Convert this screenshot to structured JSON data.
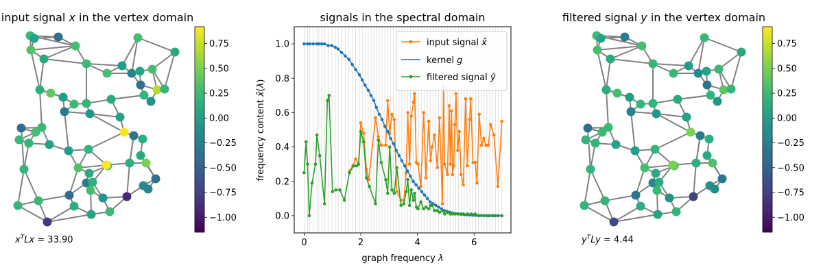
{
  "chart_data": [
    {
      "type": "scatter",
      "title": "input signal x in the vertex domain",
      "annotation": "x^T L x = 33.90",
      "colorbar": {
        "colormap": "viridis",
        "range": [
          -1.15,
          0.92
        ],
        "ticks": [
          0.75,
          0.5,
          0.25,
          0.0,
          -0.25,
          -0.5,
          -0.75,
          -1.0
        ],
        "tick_labels": [
          "0.75",
          "0.50",
          "0.25",
          "0.00",
          "−0.25",
          "−0.50",
          "−0.75",
          "−1.00"
        ]
      },
      "node_values": [
        0.25,
        -0.4,
        0.3,
        0.35,
        0.1,
        0.25,
        0.05,
        0.3,
        0.0,
        -0.2,
        0.05,
        0.3,
        -0.4,
        0.7,
        0.2,
        0.3,
        0.1,
        0.2,
        -0.1,
        0.15,
        0.4,
        0.0,
        0.25,
        0.2,
        0.1,
        0.05,
        -0.3,
        -0.45,
        0.3,
        0.25,
        0.25,
        0.2,
        0.05,
        0.0,
        -0.05,
        0.9,
        -0.35,
        0.15,
        0.2,
        0.1,
        0.35,
        0.1,
        0.35,
        0.9,
        0.15,
        0.5,
        0.2,
        -0.25,
        0.15,
        -0.35,
        -0.15,
        -0.2,
        0.3,
        0.25,
        0.15,
        -0.4,
        -0.1,
        -0.9,
        0.2,
        -0.8,
        0.05,
        0.25
      ]
    },
    {
      "type": "line",
      "title": "signals in the spectral domain",
      "xlabel": "graph frequency λ",
      "ylabel": "frequency content x̂(λ)",
      "xlim": [
        -0.35,
        7.3
      ],
      "ylim": [
        -0.1,
        1.1
      ],
      "xticks": [
        0,
        2,
        4,
        6
      ],
      "yticks": [
        0.0,
        0.2,
        0.4,
        0.6,
        0.8,
        1.0
      ],
      "ytick_labels": [
        "0.0",
        "0.2",
        "0.4",
        "0.6",
        "0.8",
        "1.0"
      ],
      "legend_position": "top-right",
      "series": [
        {
          "name": "input signal x̂",
          "color": "#ff7f0e",
          "markers": true,
          "x": [
            1.6,
            1.72,
            1.82,
            1.92,
            2.0,
            2.1,
            2.2,
            2.28,
            2.52,
            2.62,
            2.72,
            2.88,
            2.95,
            3.02,
            3.1,
            3.18,
            3.27,
            3.42,
            3.52,
            3.6,
            3.66,
            3.72,
            3.78,
            3.86,
            3.9,
            3.96,
            4.02,
            4.12,
            4.22,
            4.3,
            4.4,
            4.46,
            4.52,
            4.6,
            4.7,
            4.78,
            4.88,
            4.92,
            4.96,
            5.06,
            5.12,
            5.16,
            5.2,
            5.24,
            5.28,
            5.32,
            5.36,
            5.42,
            5.48,
            5.54,
            5.62,
            5.7,
            5.76,
            5.84,
            5.88,
            5.96,
            6.04,
            6.1,
            6.18,
            6.26,
            6.34,
            6.42,
            6.5,
            6.58,
            6.7,
            6.84,
            6.98
          ],
          "y": [
            0.26,
            0.29,
            0.33,
            0.3,
            0.54,
            0.48,
            0.27,
            0.21,
            0.57,
            0.46,
            0.41,
            0.41,
            0.67,
            0.48,
            0.59,
            0.56,
            0.14,
            0.09,
            0.09,
            0.25,
            0.6,
            0.3,
            0.58,
            0.66,
            0.71,
            0.31,
            0.3,
            0.17,
            0.6,
            0.22,
            0.55,
            0.32,
            0.4,
            0.47,
            0.28,
            0.57,
            0.07,
            0.75,
            0.3,
            0.24,
            0.64,
            0.3,
            0.61,
            0.24,
            0.29,
            0.53,
            0.71,
            0.38,
            0.49,
            0.24,
            0.18,
            0.68,
            0.29,
            0.56,
            0.68,
            0.31,
            0.31,
            0.19,
            0.59,
            0.41,
            0.45,
            0.41,
            0.41,
            0.53,
            0.47,
            0.17,
            0.55
          ]
        },
        {
          "name": "kernel g",
          "color": "#1f77b4",
          "markers": true,
          "x": [
            0.0,
            0.12,
            0.2,
            0.32,
            0.45,
            0.52,
            0.62,
            0.72,
            0.85,
            0.98,
            1.1,
            1.2,
            1.32,
            1.45,
            1.58,
            1.7,
            1.82,
            1.95,
            2.05,
            2.15,
            2.26,
            2.36,
            2.46,
            2.55,
            2.65,
            2.75,
            2.85,
            2.95,
            3.05,
            3.15,
            3.25,
            3.35,
            3.45,
            3.55,
            3.65,
            3.75,
            3.85,
            3.95,
            4.05,
            4.15,
            4.25,
            4.35,
            4.45,
            4.55,
            4.65,
            4.75,
            4.85,
            4.95,
            5.05,
            5.15,
            5.25,
            5.35,
            5.45,
            5.55,
            5.65,
            5.75,
            5.85,
            5.95,
            6.05,
            6.15,
            6.25,
            6.35,
            6.45,
            6.55,
            6.65,
            6.75,
            6.85,
            6.98
          ],
          "y": [
            1.0,
            1.0,
            1.0,
            1.0,
            1.0,
            1.0,
            1.0,
            1.0,
            0.99,
            0.99,
            0.98,
            0.97,
            0.95,
            0.93,
            0.91,
            0.88,
            0.85,
            0.82,
            0.79,
            0.76,
            0.73,
            0.7,
            0.67,
            0.63,
            0.59,
            0.56,
            0.52,
            0.49,
            0.45,
            0.42,
            0.38,
            0.35,
            0.32,
            0.29,
            0.26,
            0.23,
            0.2,
            0.18,
            0.16,
            0.14,
            0.12,
            0.1,
            0.08,
            0.07,
            0.06,
            0.05,
            0.04,
            0.03,
            0.025,
            0.02,
            0.015,
            0.012,
            0.01,
            0.008,
            0.006,
            0.005,
            0.004,
            0.003,
            0.002,
            0.0015,
            0.001,
            0.001,
            0.0,
            0.0,
            0.0,
            0.0,
            0.0,
            0.0
          ]
        },
        {
          "name": "filtered signal ŷ",
          "color": "#2ca02c",
          "markers": true,
          "x": [
            0.0,
            0.07,
            0.12,
            0.18,
            0.28,
            0.4,
            0.45,
            0.55,
            0.72,
            0.82,
            0.88,
            1.0,
            1.12,
            1.26,
            1.42,
            1.6,
            1.75,
            1.85,
            1.92,
            2.0,
            2.1,
            2.2,
            2.3,
            2.52,
            2.62,
            2.72,
            2.88,
            2.95,
            3.02,
            3.1,
            3.18,
            3.27,
            3.42,
            3.52,
            3.6,
            3.66,
            3.72,
            3.78,
            3.86,
            3.9,
            3.96,
            4.02,
            4.12,
            4.22,
            4.3,
            4.4,
            4.46,
            4.52,
            4.6,
            4.7,
            4.78,
            4.88,
            4.96,
            5.06,
            5.16,
            5.24,
            5.32,
            5.42,
            5.54,
            5.62,
            5.76,
            5.9,
            6.04,
            6.18,
            6.34,
            6.5,
            6.7,
            6.98
          ],
          "y": [
            0.25,
            0.43,
            0.3,
            0.0,
            0.19,
            0.3,
            0.47,
            0.35,
            0.07,
            0.67,
            0.7,
            0.14,
            0.15,
            0.15,
            0.09,
            0.25,
            0.29,
            0.29,
            0.3,
            0.49,
            0.43,
            0.22,
            0.17,
            0.07,
            0.44,
            0.31,
            0.21,
            0.13,
            0.4,
            0.15,
            0.13,
            0.28,
            0.06,
            0.07,
            0.14,
            0.21,
            0.06,
            0.15,
            0.09,
            0.13,
            0.05,
            0.04,
            0.08,
            0.04,
            0.05,
            0.04,
            0.06,
            0.06,
            0.03,
            0.03,
            0.02,
            0.03,
            0.01,
            0.02,
            0.01,
            0.01,
            0.01,
            0.01,
            0.01,
            0.01,
            0.01,
            0.01,
            0.01,
            0.0,
            0.0,
            0.0,
            0.0,
            0.0
          ]
        }
      ],
      "vertical_lines_at_eigenvalues": true
    },
    {
      "type": "scatter",
      "title": "filtered signal y in the vertex domain",
      "annotation": "y^T L y = 4.44",
      "colorbar": {
        "colormap": "viridis",
        "range": [
          -1.15,
          0.92
        ],
        "ticks": [
          0.75,
          0.5,
          0.25,
          0.0,
          -0.25,
          -0.5,
          -0.75,
          -1.0
        ],
        "tick_labels": [
          "0.75",
          "0.50",
          "0.25",
          "0.00",
          "−0.25",
          "−0.50",
          "−0.75",
          "−1.00"
        ]
      },
      "node_values": [
        0.25,
        -0.3,
        0.3,
        0.3,
        0.1,
        0.2,
        0.05,
        0.25,
        0.0,
        -0.15,
        0.05,
        0.25,
        -0.35,
        0.4,
        0.2,
        0.25,
        0.1,
        0.2,
        -0.05,
        0.15,
        0.3,
        0.0,
        0.2,
        0.2,
        0.1,
        0.05,
        -0.25,
        -0.4,
        0.25,
        0.25,
        0.2,
        0.2,
        0.05,
        0.0,
        -0.05,
        0.5,
        -0.3,
        0.15,
        0.2,
        0.1,
        0.3,
        0.1,
        0.3,
        0.5,
        0.15,
        0.35,
        0.2,
        -0.2,
        0.15,
        -0.3,
        -0.1,
        -0.15,
        0.25,
        0.2,
        0.15,
        -0.35,
        -0.1,
        -0.75,
        0.2,
        -0.7,
        0.05,
        0.2
      ]
    }
  ]
}
